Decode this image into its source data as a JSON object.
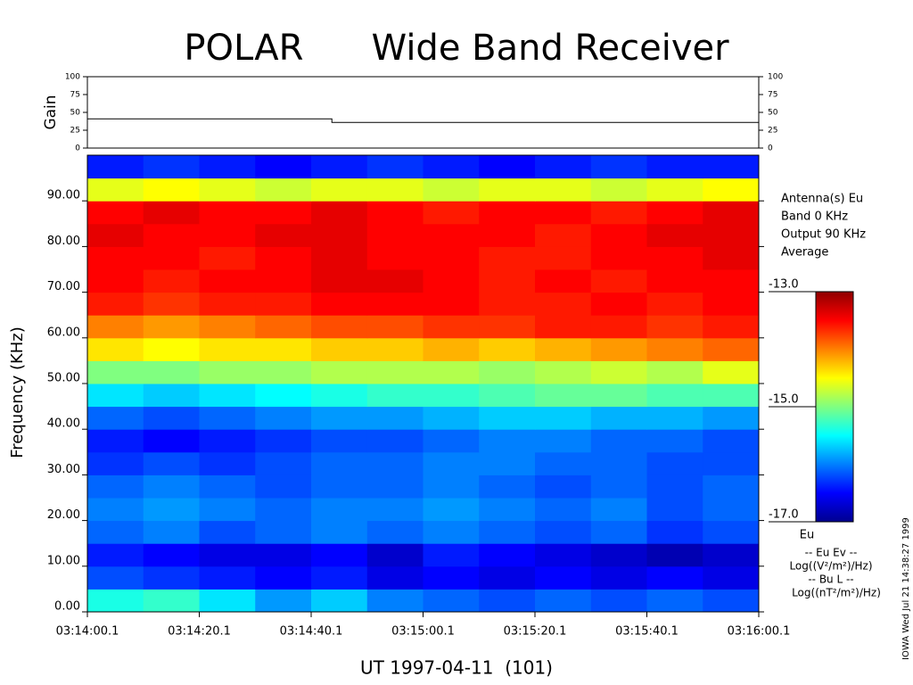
{
  "chart_data": {
    "type": "spectrogram",
    "title": "POLAR      Wide Band Receiver",
    "xlabel": "UT 1997-04-11  (101)",
    "ylabel": "Frequency (KHz)",
    "side_text": "IOWA Wed Jul 21 14:38:27 1999",
    "xlim": [
      0,
      120
    ],
    "xticks": [
      {
        "value": 0,
        "label": "03:14:00.1"
      },
      {
        "value": 20,
        "label": "03:14:20.1"
      },
      {
        "value": 40,
        "label": "03:14:40.1"
      },
      {
        "value": 60,
        "label": "03:15:00.1"
      },
      {
        "value": 80,
        "label": "03:15:20.1"
      },
      {
        "value": 100,
        "label": "03:15:40.1"
      },
      {
        "value": 120,
        "label": "03:16:00.1"
      }
    ],
    "ylim": [
      0,
      100
    ],
    "yticks": [
      {
        "value": 0,
        "label": "0.00"
      },
      {
        "value": 10,
        "label": "10.00"
      },
      {
        "value": 20,
        "label": "20.00"
      },
      {
        "value": 30,
        "label": "30.00"
      },
      {
        "value": 40,
        "label": "40.00"
      },
      {
        "value": 50,
        "label": "50.00"
      },
      {
        "value": 60,
        "label": "60.00"
      },
      {
        "value": 70,
        "label": "70.00"
      },
      {
        "value": 80,
        "label": "80.00"
      },
      {
        "value": 90,
        "label": "90.00"
      }
    ],
    "z": [
      [
        -15.4,
        -15.3,
        -15.6,
        -15.9,
        -15.7,
        -16.0,
        -16.1,
        -16.2,
        -16.1,
        -16.2,
        -16.1,
        -16.2
      ],
      [
        -16.2,
        -16.3,
        -16.4,
        -16.5,
        -16.4,
        -16.6,
        -16.5,
        -16.6,
        -16.5,
        -16.6,
        -16.5,
        -16.6
      ],
      [
        -16.4,
        -16.5,
        -16.6,
        -16.6,
        -16.5,
        -16.7,
        -16.4,
        -16.5,
        -16.6,
        -16.7,
        -16.8,
        -16.7
      ],
      [
        -16.1,
        -16.0,
        -16.2,
        -16.1,
        -16.0,
        -16.1,
        -16.0,
        -16.1,
        -16.2,
        -16.1,
        -16.3,
        -16.2
      ],
      [
        -16.0,
        -15.9,
        -16.0,
        -16.1,
        -16.0,
        -16.0,
        -15.9,
        -16.0,
        -16.1,
        -16.0,
        -16.2,
        -16.1
      ],
      [
        -16.1,
        -16.0,
        -16.1,
        -16.2,
        -16.1,
        -16.1,
        -16.0,
        -16.1,
        -16.2,
        -16.1,
        -16.2,
        -16.1
      ],
      [
        -16.3,
        -16.2,
        -16.3,
        -16.2,
        -16.1,
        -16.1,
        -16.0,
        -16.0,
        -16.1,
        -16.1,
        -16.2,
        -16.2
      ],
      [
        -16.4,
        -16.5,
        -16.4,
        -16.3,
        -16.2,
        -16.2,
        -16.1,
        -16.0,
        -16.0,
        -16.1,
        -16.1,
        -16.2
      ],
      [
        -16.1,
        -16.2,
        -16.1,
        -16.0,
        -15.9,
        -15.9,
        -15.8,
        -15.7,
        -15.7,
        -15.8,
        -15.8,
        -15.9
      ],
      [
        -15.6,
        -15.7,
        -15.6,
        -15.5,
        -15.4,
        -15.3,
        -15.3,
        -15.2,
        -15.1,
        -15.1,
        -15.2,
        -15.2
      ],
      [
        -15.0,
        -15.0,
        -14.9,
        -14.9,
        -14.8,
        -14.8,
        -14.8,
        -14.9,
        -14.8,
        -14.7,
        -14.8,
        -14.6
      ],
      [
        -14.4,
        -14.5,
        -14.4,
        -14.4,
        -14.3,
        -14.3,
        -14.2,
        -14.3,
        -14.2,
        -14.1,
        -14.0,
        -13.9
      ],
      [
        -14.0,
        -14.1,
        -14.0,
        -13.9,
        -13.8,
        -13.8,
        -13.7,
        -13.7,
        -13.6,
        -13.6,
        -13.7,
        -13.6
      ],
      [
        -13.6,
        -13.7,
        -13.6,
        -13.6,
        -13.5,
        -13.5,
        -13.5,
        -13.6,
        -13.6,
        -13.5,
        -13.6,
        -13.5
      ],
      [
        -13.5,
        -13.6,
        -13.5,
        -13.5,
        -13.4,
        -13.4,
        -13.5,
        -13.6,
        -13.5,
        -13.6,
        -13.5,
        -13.5
      ],
      [
        -13.5,
        -13.5,
        -13.6,
        -13.5,
        -13.4,
        -13.5,
        -13.5,
        -13.6,
        -13.6,
        -13.5,
        -13.5,
        -13.4
      ],
      [
        -13.4,
        -13.5,
        -13.5,
        -13.4,
        -13.4,
        -13.5,
        -13.5,
        -13.5,
        -13.6,
        -13.5,
        -13.4,
        -13.4
      ],
      [
        -13.5,
        -13.4,
        -13.5,
        -13.5,
        -13.4,
        -13.5,
        -13.6,
        -13.5,
        -13.5,
        -13.6,
        -13.5,
        -13.4
      ],
      [
        -14.6,
        -14.5,
        -14.6,
        -14.7,
        -14.6,
        -14.6,
        -14.7,
        -14.6,
        -14.6,
        -14.7,
        -14.6,
        -14.5
      ],
      [
        -16.4,
        -16.3,
        -16.4,
        -16.5,
        -16.4,
        -16.3,
        -16.4,
        -16.5,
        -16.4,
        -16.3,
        -16.4,
        -16.4
      ]
    ],
    "clim": [
      -17,
      -13
    ],
    "cticks": [
      {
        "value": -13,
        "label": "-13.0"
      },
      {
        "value": -15,
        "label": "-15.0"
      },
      {
        "value": -17,
        "label": "-17.0"
      }
    ],
    "colorbar_label": "Eu",
    "annotations": [
      "Antenna(s) Eu",
      "Band 0 KHz",
      "Output 90 KHz",
      "Average"
    ],
    "units": [
      "-- Eu Ev --",
      "Log((V²/m²)/Hz)",
      "-- Bu L --",
      "Log((nT²/m²)/Hz)"
    ],
    "gain": {
      "ylabel": "Gain",
      "ylim": [
        0,
        100
      ],
      "yticks": [
        0,
        25,
        50,
        75,
        100
      ],
      "color": "#000000",
      "x": [
        0,
        43.7,
        43.7,
        120
      ],
      "values": [
        41,
        41,
        36,
        36
      ]
    }
  }
}
